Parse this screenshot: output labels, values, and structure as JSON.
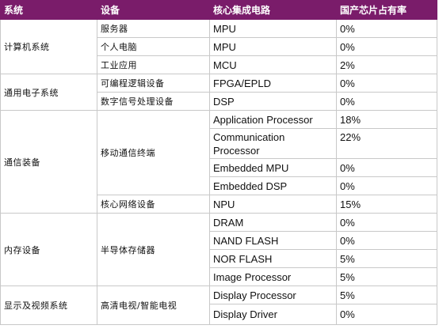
{
  "headers": [
    "系统",
    "设备",
    "核心集成电路",
    "国产芯片占有率"
  ],
  "systems": [
    {
      "name": "计算机系统",
      "devices": [
        {
          "name": "服务器",
          "chips": [
            {
              "chip": "MPU",
              "share": "0%"
            }
          ]
        },
        {
          "name": "个人电脑",
          "chips": [
            {
              "chip": "MPU",
              "share": "0%"
            }
          ]
        },
        {
          "name": "工业应用",
          "chips": [
            {
              "chip": "MCU",
              "share": "2%"
            }
          ]
        }
      ]
    },
    {
      "name": "通用电子系统",
      "devices": [
        {
          "name": "可编程逻辑设备",
          "chips": [
            {
              "chip": "FPGA/EPLD",
              "share": "0%"
            }
          ]
        },
        {
          "name": "数字信号处理设备",
          "chips": [
            {
              "chip": "DSP",
              "share": "0%"
            }
          ]
        }
      ]
    },
    {
      "name": "通信装备",
      "devices": [
        {
          "name": "移动通信终端",
          "chips": [
            {
              "chip": "Application Processor",
              "share": "18%"
            },
            {
              "chip": "Communication Processor",
              "share": "22%"
            },
            {
              "chip": "Embedded MPU",
              "share": "0%"
            },
            {
              "chip": "Embedded DSP",
              "share": "0%"
            }
          ]
        },
        {
          "name": "核心网络设备",
          "chips": [
            {
              "chip": "NPU",
              "share": "15%"
            }
          ]
        }
      ]
    },
    {
      "name": "内存设备",
      "devices": [
        {
          "name": "半导体存储器",
          "chips": [
            {
              "chip": "DRAM",
              "share": "0%"
            },
            {
              "chip": "NAND FLASH",
              "share": "0%"
            },
            {
              "chip": "NOR FLASH",
              "share": "5%"
            },
            {
              "chip": "Image Processor",
              "share": "5%"
            }
          ]
        }
      ]
    },
    {
      "name": "显示及视频系统",
      "devices": [
        {
          "name": "高清电视/智能电视",
          "chips": [
            {
              "chip": "Display Processor",
              "share": "5%"
            },
            {
              "chip": "Display Driver",
              "share": "0%"
            }
          ]
        }
      ]
    }
  ]
}
